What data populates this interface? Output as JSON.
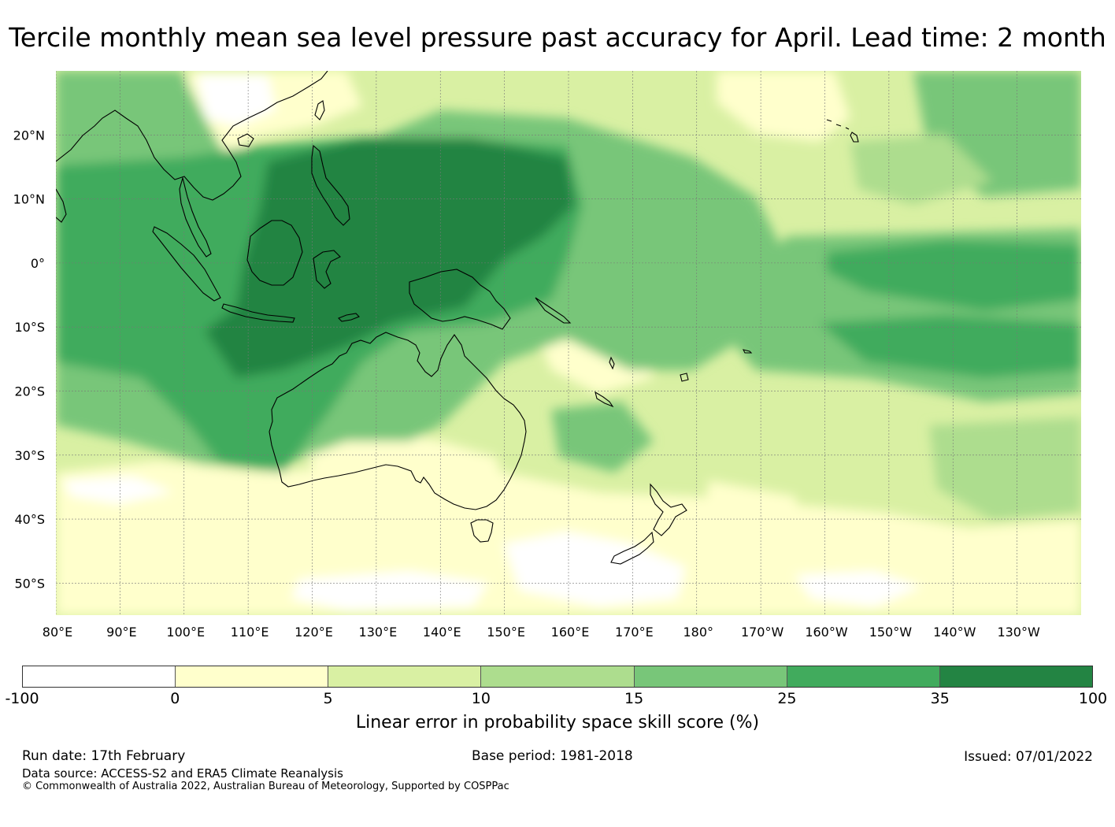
{
  "title": "Tercile monthly mean sea level pressure past accuracy for April. Lead time: 2 month",
  "map": {
    "lon_labels": [
      "80°E",
      "90°E",
      "100°E",
      "110°E",
      "120°E",
      "130°E",
      "140°E",
      "150°E",
      "160°E",
      "170°E",
      "180°",
      "170°W",
      "160°W",
      "150°W",
      "140°W",
      "130°W"
    ],
    "lat_labels": [
      "20°N",
      "10°N",
      "0°",
      "10°S",
      "20°S",
      "30°S",
      "40°S",
      "50°S"
    ],
    "lon_range": [
      80,
      240
    ],
    "lat_range": [
      -55,
      30
    ],
    "land_outline_color": "#000000",
    "grid_color": "#777777"
  },
  "colorbar": {
    "colors": [
      "#ffffff",
      "#ffffcc",
      "#d9f0a3",
      "#addd8e",
      "#78c679",
      "#41ab5d",
      "#238443"
    ],
    "ticks": [
      "-100",
      "0",
      "5",
      "10",
      "15",
      "25",
      "35",
      "100"
    ],
    "label": "Linear error in probability space skill score (%)"
  },
  "footer": {
    "run_date": "Run date: 17th February",
    "base_period": "Base period: 1981-2018",
    "issued": "Issued: 07/01/2022",
    "data_source": "Data source: ACCESS-S2 and ERA5 Climate Reanalysis",
    "copyright": "© Commonwealth of Australia 2022, Australian Bureau of Meteorology, Supported by COSPPac"
  }
}
